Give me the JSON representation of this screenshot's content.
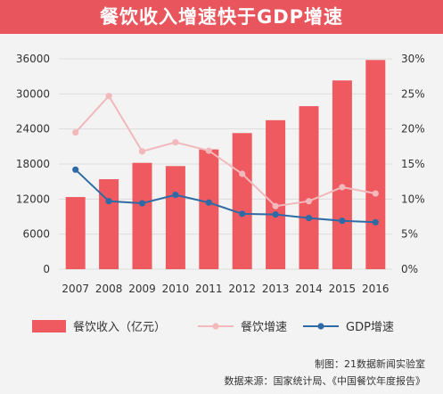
{
  "title": "餐饮收入增速快于GDP增速",
  "credits": [
    "制图：21数据新闻实验室",
    "数据来源：国家统计局、《中国餐饮年度报告》"
  ],
  "colors": {
    "title_bg": "#e8555c",
    "bar": "#ee5a5f",
    "dining_growth_line": "#f2b8bb",
    "gdp_growth_line": "#2e6ba6",
    "axis_text": "#333333"
  },
  "chart_data": {
    "type": "bar",
    "title": "餐饮收入增速快于GDP增速",
    "categories": [
      "2007",
      "2008",
      "2009",
      "2010",
      "2011",
      "2012",
      "2013",
      "2014",
      "2015",
      "2016"
    ],
    "y_left": {
      "ylim": [
        0,
        36000
      ],
      "ticks": [
        "0",
        "6000",
        "12000",
        "18000",
        "24000",
        "30000",
        "36000"
      ]
    },
    "y_right": {
      "ylim": [
        0,
        30
      ],
      "ticks": [
        "0%",
        "5%",
        "10%",
        "15%",
        "20%",
        "25%",
        "30%"
      ]
    },
    "series": [
      {
        "name": "餐饮收入（亿元）",
        "type": "bar",
        "axis": "left",
        "values": [
          12350,
          15400,
          18200,
          17650,
          20500,
          23300,
          25500,
          27900,
          32300,
          35800
        ]
      },
      {
        "name": "餐饮增速",
        "type": "line",
        "axis": "right",
        "values": [
          19.5,
          24.7,
          16.8,
          18.1,
          16.9,
          13.6,
          9.0,
          9.7,
          11.7,
          10.8
        ]
      },
      {
        "name": "GDP增速",
        "type": "line",
        "axis": "right",
        "values": [
          14.2,
          9.7,
          9.4,
          10.6,
          9.5,
          7.9,
          7.8,
          7.3,
          6.9,
          6.7
        ]
      }
    ],
    "legend_position": "bottom",
    "grid": true
  }
}
